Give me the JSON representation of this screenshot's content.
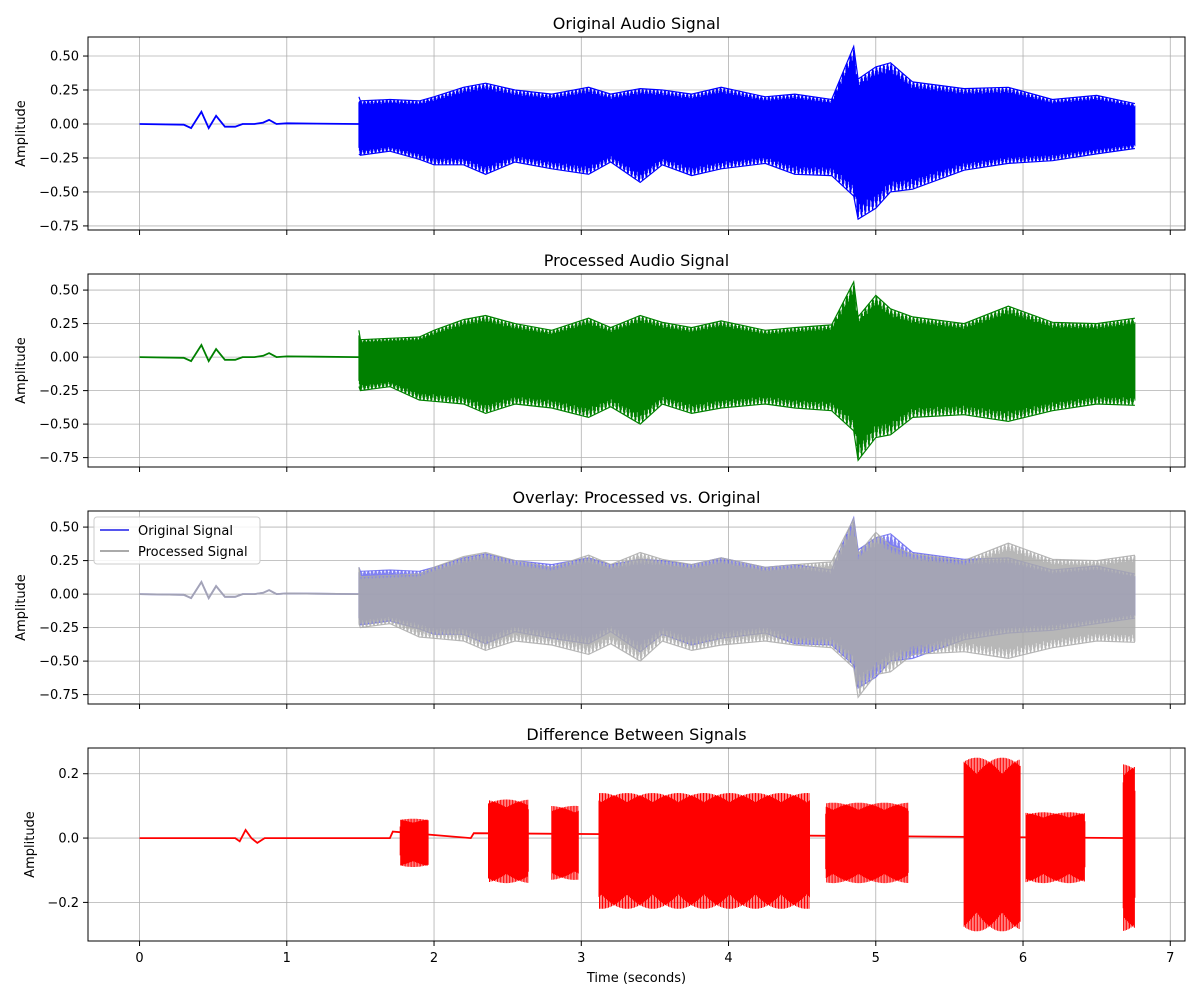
{
  "chart_data": [
    {
      "type": "line",
      "title": "Original Audio Signal",
      "ylabel": "Amplitude",
      "xlabel": "",
      "xlim": [
        -0.35,
        7.1
      ],
      "ylim": [
        -0.78,
        0.64
      ],
      "yticks": [
        0.5,
        0.25,
        0.0,
        -0.25,
        -0.5,
        -0.75
      ],
      "ytick_labels": [
        "0.50",
        "0.25",
        "0.00",
        "−0.25",
        "−0.50",
        "−0.75"
      ],
      "grid": true,
      "series": [
        {
          "color": "#0000ff",
          "waveform": {
            "t": [
              0,
              0.3,
              0.35,
              0.42,
              0.47,
              0.52,
              0.58,
              0.65,
              0.7,
              0.78,
              0.84,
              0.88,
              0.93,
              1.0,
              1.2,
              1.48,
              1.49
            ],
            "v": [
              0,
              -0.005,
              -0.03,
              0.09,
              -0.03,
              0.06,
              -0.02,
              -0.02,
              0.0,
              0.0,
              0.01,
              0.03,
              0.0,
              0.005,
              0.003,
              0.0,
              0.0
            ],
            "env_t": [
              1.49,
              1.5,
              1.7,
              1.9,
              2.0,
              2.2,
              2.35,
              2.55,
              2.8,
              3.05,
              3.2,
              3.4,
              3.55,
              3.75,
              3.95,
              4.25,
              4.45,
              4.7,
              4.85,
              4.88,
              5.0,
              5.1,
              5.25,
              5.6,
              5.9,
              6.2,
              6.5,
              6.76
            ],
            "env_hi": [
              0.2,
              0.17,
              0.18,
              0.17,
              0.2,
              0.27,
              0.3,
              0.25,
              0.22,
              0.27,
              0.22,
              0.26,
              0.25,
              0.22,
              0.27,
              0.2,
              0.22,
              0.18,
              0.57,
              0.33,
              0.42,
              0.45,
              0.31,
              0.26,
              0.27,
              0.18,
              0.21,
              0.15
            ],
            "env_lo": [
              -0.22,
              -0.23,
              -0.2,
              -0.26,
              -0.3,
              -0.3,
              -0.37,
              -0.28,
              -0.33,
              -0.37,
              -0.28,
              -0.43,
              -0.3,
              -0.38,
              -0.33,
              -0.29,
              -0.37,
              -0.38,
              -0.53,
              -0.7,
              -0.62,
              -0.5,
              -0.48,
              -0.34,
              -0.29,
              -0.27,
              -0.22,
              -0.18
            ]
          }
        }
      ]
    },
    {
      "type": "line",
      "title": "Processed Audio Signal",
      "ylabel": "Amplitude",
      "xlabel": "",
      "xlim": [
        -0.35,
        7.1
      ],
      "ylim": [
        -0.82,
        0.62
      ],
      "yticks": [
        0.5,
        0.25,
        0.0,
        -0.25,
        -0.5,
        -0.75
      ],
      "ytick_labels": [
        "0.50",
        "0.25",
        "0.00",
        "−0.25",
        "−0.50",
        "−0.75"
      ],
      "grid": true,
      "series": [
        {
          "color": "#008000",
          "waveform": {
            "t": [
              0,
              0.3,
              0.35,
              0.42,
              0.47,
              0.52,
              0.58,
              0.65,
              0.7,
              0.78,
              0.84,
              0.88,
              0.93,
              1.0,
              1.2,
              1.48,
              1.49
            ],
            "v": [
              0,
              -0.005,
              -0.03,
              0.09,
              -0.03,
              0.06,
              -0.02,
              -0.02,
              0.0,
              0.0,
              0.01,
              0.03,
              0.0,
              0.005,
              0.003,
              0.0,
              0.0
            ],
            "env_t": [
              1.49,
              1.5,
              1.7,
              1.9,
              2.0,
              2.2,
              2.35,
              2.55,
              2.8,
              3.05,
              3.2,
              3.4,
              3.55,
              3.75,
              3.95,
              4.25,
              4.45,
              4.7,
              4.85,
              4.88,
              5.0,
              5.1,
              5.25,
              5.6,
              5.9,
              6.2,
              6.5,
              6.76
            ],
            "env_hi": [
              0.2,
              0.13,
              0.14,
              0.15,
              0.2,
              0.28,
              0.31,
              0.25,
              0.2,
              0.29,
              0.22,
              0.31,
              0.26,
              0.22,
              0.27,
              0.2,
              0.22,
              0.24,
              0.56,
              0.3,
              0.46,
              0.36,
              0.3,
              0.25,
              0.38,
              0.26,
              0.25,
              0.29
            ],
            "env_lo": [
              -0.22,
              -0.25,
              -0.22,
              -0.32,
              -0.33,
              -0.35,
              -0.42,
              -0.35,
              -0.38,
              -0.45,
              -0.37,
              -0.5,
              -0.35,
              -0.42,
              -0.38,
              -0.35,
              -0.38,
              -0.4,
              -0.55,
              -0.77,
              -0.6,
              -0.58,
              -0.45,
              -0.43,
              -0.48,
              -0.4,
              -0.35,
              -0.36
            ]
          }
        }
      ]
    },
    {
      "type": "line",
      "title": "Overlay: Processed vs. Original",
      "ylabel": "Amplitude",
      "xlabel": "",
      "xlim": [
        -0.35,
        7.1
      ],
      "ylim": [
        -0.82,
        0.62
      ],
      "yticks": [
        0.5,
        0.25,
        0.0,
        -0.25,
        -0.5,
        -0.75
      ],
      "ytick_labels": [
        "0.50",
        "0.25",
        "0.00",
        "−0.25",
        "−0.50",
        "−0.75"
      ],
      "grid": true,
      "legend": "top-left",
      "series": [
        {
          "name": "Original Signal",
          "color": "#5555ee",
          "waveform": {
            "t": [
              0,
              0.3,
              0.35,
              0.42,
              0.47,
              0.52,
              0.58,
              0.65,
              0.7,
              0.78,
              0.84,
              0.88,
              0.93,
              1.0,
              1.2,
              1.48,
              1.49
            ],
            "v": [
              0,
              -0.005,
              -0.03,
              0.09,
              -0.03,
              0.06,
              -0.02,
              -0.02,
              0.0,
              0.0,
              0.01,
              0.03,
              0.0,
              0.005,
              0.003,
              0.0,
              0.0
            ],
            "env_t": [
              1.49,
              1.5,
              1.7,
              1.9,
              2.0,
              2.2,
              2.35,
              2.55,
              2.8,
              3.05,
              3.2,
              3.4,
              3.55,
              3.75,
              3.95,
              4.25,
              4.45,
              4.7,
              4.85,
              4.88,
              5.0,
              5.1,
              5.25,
              5.6,
              5.9,
              6.2,
              6.5,
              6.76
            ],
            "env_hi": [
              0.2,
              0.17,
              0.18,
              0.17,
              0.2,
              0.27,
              0.3,
              0.25,
              0.22,
              0.27,
              0.22,
              0.26,
              0.25,
              0.22,
              0.27,
              0.2,
              0.22,
              0.18,
              0.57,
              0.33,
              0.42,
              0.45,
              0.31,
              0.26,
              0.27,
              0.18,
              0.21,
              0.15
            ],
            "env_lo": [
              -0.22,
              -0.23,
              -0.2,
              -0.26,
              -0.3,
              -0.3,
              -0.37,
              -0.28,
              -0.33,
              -0.37,
              -0.28,
              -0.43,
              -0.3,
              -0.38,
              -0.33,
              -0.29,
              -0.37,
              -0.38,
              -0.53,
              -0.7,
              -0.62,
              -0.5,
              -0.48,
              -0.34,
              -0.29,
              -0.27,
              -0.22,
              -0.18
            ]
          }
        },
        {
          "name": "Processed Signal",
          "color": "#aaaaaa",
          "waveform": {
            "t": [
              0,
              0.3,
              0.35,
              0.42,
              0.47,
              0.52,
              0.58,
              0.65,
              0.7,
              0.78,
              0.84,
              0.88,
              0.93,
              1.0,
              1.2,
              1.48,
              1.49
            ],
            "v": [
              0,
              -0.005,
              -0.03,
              0.09,
              -0.03,
              0.06,
              -0.02,
              -0.02,
              0.0,
              0.0,
              0.01,
              0.03,
              0.0,
              0.005,
              0.003,
              0.0,
              0.0
            ],
            "env_t": [
              1.49,
              1.5,
              1.7,
              1.9,
              2.0,
              2.2,
              2.35,
              2.55,
              2.8,
              3.05,
              3.2,
              3.4,
              3.55,
              3.75,
              3.95,
              4.25,
              4.45,
              4.7,
              4.85,
              4.88,
              5.0,
              5.1,
              5.25,
              5.6,
              5.9,
              6.2,
              6.5,
              6.76
            ],
            "env_hi": [
              0.2,
              0.13,
              0.14,
              0.15,
              0.2,
              0.28,
              0.31,
              0.25,
              0.2,
              0.29,
              0.22,
              0.31,
              0.26,
              0.22,
              0.27,
              0.2,
              0.22,
              0.24,
              0.56,
              0.3,
              0.46,
              0.36,
              0.3,
              0.25,
              0.38,
              0.26,
              0.25,
              0.29
            ],
            "env_lo": [
              -0.22,
              -0.25,
              -0.22,
              -0.32,
              -0.33,
              -0.35,
              -0.42,
              -0.35,
              -0.38,
              -0.45,
              -0.37,
              -0.5,
              -0.35,
              -0.42,
              -0.38,
              -0.35,
              -0.38,
              -0.4,
              -0.55,
              -0.77,
              -0.6,
              -0.58,
              -0.45,
              -0.43,
              -0.48,
              -0.4,
              -0.35,
              -0.36
            ]
          }
        }
      ]
    },
    {
      "type": "line",
      "title": "Difference Between Signals",
      "ylabel": "Amplitude",
      "xlabel": "Time (seconds)",
      "xlim": [
        -0.35,
        7.1
      ],
      "xticks": [
        0,
        1,
        2,
        3,
        4,
        5,
        6,
        7
      ],
      "xtick_labels": [
        "0",
        "1",
        "2",
        "3",
        "4",
        "5",
        "6",
        "7"
      ],
      "ylim": [
        -0.32,
        0.28
      ],
      "yticks": [
        0.2,
        0.0,
        -0.2
      ],
      "ytick_labels": [
        "0.2",
        "0.0",
        "−0.2"
      ],
      "grid": true,
      "series": [
        {
          "color": "#ff0000",
          "baseline": {
            "t": [
              0,
              0.65,
              0.68,
              0.72,
              0.76,
              0.8,
              0.85,
              1.0,
              1.7,
              1.72,
              2.25,
              2.27,
              6.76
            ],
            "v": [
              0,
              0,
              -0.01,
              0.025,
              0.0,
              -0.015,
              0.0,
              0.0,
              0.0,
              0.02,
              0.0,
              0.015,
              0.0
            ]
          },
          "bursts": [
            {
              "start": 1.77,
              "end": 1.96,
              "hi": 0.06,
              "lo": -0.09
            },
            {
              "start": 2.37,
              "end": 2.64,
              "hi": 0.12,
              "lo": -0.14
            },
            {
              "start": 2.8,
              "end": 2.98,
              "hi": 0.1,
              "lo": -0.13
            },
            {
              "start": 3.12,
              "end": 4.55,
              "hi": 0.14,
              "lo": -0.22
            },
            {
              "start": 4.66,
              "end": 5.22,
              "hi": 0.11,
              "lo": -0.14
            },
            {
              "start": 5.6,
              "end": 5.98,
              "hi": 0.25,
              "lo": -0.29
            },
            {
              "start": 6.02,
              "end": 6.42,
              "hi": 0.08,
              "lo": -0.14
            },
            {
              "start": 6.68,
              "end": 6.76,
              "hi": 0.23,
              "lo": -0.29
            }
          ]
        }
      ]
    }
  ]
}
